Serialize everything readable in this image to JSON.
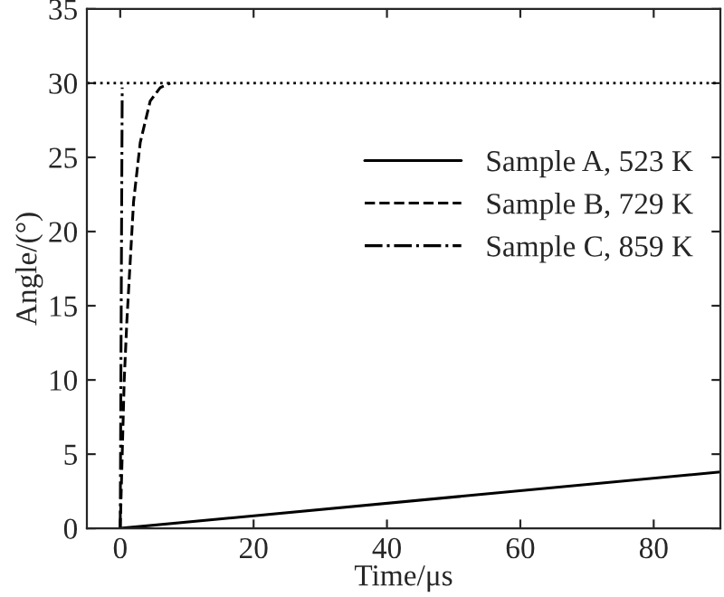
{
  "chart_data": {
    "type": "line",
    "xlabel": "Time/μs",
    "ylabel": "Angle/(°)",
    "xlim": [
      -5,
      90
    ],
    "ylim": [
      0,
      35
    ],
    "xticks": [
      0,
      20,
      40,
      60,
      80
    ],
    "yticks": [
      0,
      5,
      10,
      15,
      20,
      25,
      30,
      35
    ],
    "grid": false,
    "legend": "right",
    "marker": "none",
    "series": [
      {
        "name": "Sample A, 523 K",
        "color": "#000000",
        "line_style": "solid",
        "x": [
          0,
          90
        ],
        "values": [
          0,
          3.8
        ]
      },
      {
        "name": "Sample B, 729 K",
        "color": "#000000",
        "line_style": "dashed",
        "x": [
          0,
          0.3,
          0.6,
          1,
          1.5,
          2,
          3,
          4.5,
          6,
          7.5
        ],
        "values": [
          0,
          5,
          10,
          14,
          18,
          22,
          26,
          28.8,
          29.7,
          30
        ]
      },
      {
        "name": "Sample C, 859 K",
        "color": "#000000",
        "line_style": "dashdot",
        "x": [
          0,
          0.1,
          0.2,
          0.3
        ],
        "values": [
          0,
          10,
          20,
          29.7
        ]
      }
    ],
    "ref_lines": [
      {
        "axis": "y",
        "value": 30,
        "color": "#000000",
        "line_style": "dotted"
      }
    ]
  }
}
